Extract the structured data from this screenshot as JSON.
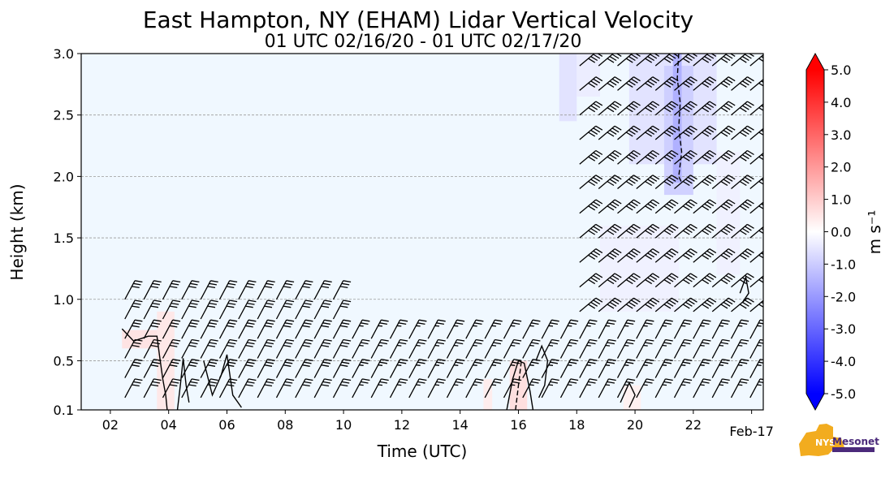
{
  "chart_data": {
    "type": "heatmap",
    "title": "East Hampton, NY (EHAM) Lidar Vertical Velocity",
    "subtitle": "01 UTC 02/16/20 - 01 UTC 02/17/20",
    "xlabel": "Time (UTC)",
    "ylabel": "Height (km)",
    "xlim": [
      1,
      24.4
    ],
    "ylim": [
      0.1,
      3.0
    ],
    "x_ticks": [
      {
        "value": 2,
        "label": "02"
      },
      {
        "value": 4,
        "label": "04"
      },
      {
        "value": 6,
        "label": "06"
      },
      {
        "value": 8,
        "label": "08"
      },
      {
        "value": 10,
        "label": "10"
      },
      {
        "value": 12,
        "label": "12"
      },
      {
        "value": 14,
        "label": "14"
      },
      {
        "value": 16,
        "label": "16"
      },
      {
        "value": 18,
        "label": "18"
      },
      {
        "value": 20,
        "label": "20"
      },
      {
        "value": 22,
        "label": "22"
      },
      {
        "value": 24,
        "label": "Feb-17"
      }
    ],
    "y_ticks": [
      {
        "value": 0.1,
        "label": "0.1"
      },
      {
        "value": 0.5,
        "label": "0.5"
      },
      {
        "value": 1.0,
        "label": "1.0"
      },
      {
        "value": 1.5,
        "label": "1.5"
      },
      {
        "value": 2.0,
        "label": "2.0"
      },
      {
        "value": 2.5,
        "label": "2.5"
      },
      {
        "value": 3.0,
        "label": "3.0"
      }
    ],
    "grid": "horizontal-dashed",
    "background_value": 0.0,
    "colorbar": {
      "label": "m s⁻¹",
      "min": -5.0,
      "max": 5.0,
      "extend": "both",
      "ticks": [
        "5.0",
        "4.0",
        "3.0",
        "2.0",
        "1.0",
        "0.0",
        "-1.0",
        "-2.0",
        "-3.0",
        "-4.0",
        "-5.0"
      ],
      "colors": {
        "negative": "#0000ff",
        "neutral": "#ffffff",
        "positive": "#ff0000"
      }
    },
    "regions": [
      {
        "t0": 17.4,
        "t1": 18.0,
        "z0": 2.45,
        "z1": 3.0,
        "value": -0.6
      },
      {
        "t0": 18.0,
        "t1": 18.8,
        "z0": 2.65,
        "z1": 3.0,
        "value": -0.4
      },
      {
        "t0": 19.8,
        "t1": 22.8,
        "z0": 2.1,
        "z1": 3.0,
        "value": -0.6
      },
      {
        "t0": 21.0,
        "t1": 22.0,
        "z0": 1.85,
        "z1": 2.9,
        "value": -1.0
      },
      {
        "t0": 21.3,
        "t1": 21.6,
        "z0": 1.95,
        "z1": 3.0,
        "value": -1.6
      },
      {
        "t0": 22.8,
        "t1": 23.6,
        "z0": 1.2,
        "z1": 2.2,
        "value": -0.3
      },
      {
        "t0": 18.8,
        "t1": 21.5,
        "z0": 0.9,
        "z1": 1.6,
        "value": -0.3
      },
      {
        "t0": 2.4,
        "t1": 3.6,
        "z0": 0.6,
        "z1": 0.75,
        "value": 0.6
      },
      {
        "t0": 3.6,
        "t1": 4.2,
        "z0": 0.1,
        "z1": 0.9,
        "value": 0.5
      },
      {
        "t0": 15.7,
        "t1": 16.3,
        "z0": 0.1,
        "z1": 0.5,
        "value": 0.7
      },
      {
        "t0": 14.8,
        "t1": 15.1,
        "z0": 0.1,
        "z1": 0.35,
        "value": 0.4
      },
      {
        "t0": 19.6,
        "t1": 20.2,
        "z0": 0.1,
        "z1": 0.3,
        "value": 0.3
      }
    ],
    "contours": [
      {
        "style": "solid",
        "points": [
          [
            2.4,
            0.76
          ],
          [
            2.8,
            0.66
          ],
          [
            3.3,
            0.7
          ],
          [
            3.6,
            0.7
          ],
          [
            3.7,
            0.52
          ],
          [
            3.8,
            0.35
          ],
          [
            3.9,
            0.22
          ],
          [
            3.95,
            0.1
          ]
        ]
      },
      {
        "style": "solid",
        "points": [
          [
            4.3,
            0.1
          ],
          [
            4.4,
            0.3
          ],
          [
            4.5,
            0.52
          ],
          [
            4.6,
            0.3
          ],
          [
            4.7,
            0.16
          ]
        ]
      },
      {
        "style": "solid",
        "points": [
          [
            5.2,
            0.5
          ],
          [
            5.5,
            0.22
          ],
          [
            5.8,
            0.38
          ],
          [
            6.0,
            0.55
          ],
          [
            6.2,
            0.22
          ],
          [
            6.5,
            0.12
          ]
        ]
      },
      {
        "style": "solid",
        "points": [
          [
            15.6,
            0.1
          ],
          [
            15.8,
            0.35
          ],
          [
            16.0,
            0.5
          ],
          [
            16.2,
            0.48
          ],
          [
            16.4,
            0.25
          ],
          [
            16.5,
            0.1
          ]
        ]
      },
      {
        "style": "solid",
        "points": [
          [
            16.6,
            0.5
          ],
          [
            16.8,
            0.62
          ],
          [
            17.0,
            0.5
          ],
          [
            16.9,
            0.3
          ],
          [
            16.7,
            0.2
          ]
        ]
      },
      {
        "style": "solid",
        "points": [
          [
            19.5,
            0.16
          ],
          [
            19.8,
            0.32
          ],
          [
            20.0,
            0.22
          ],
          [
            19.8,
            0.12
          ]
        ]
      },
      {
        "style": "solid",
        "points": [
          [
            23.6,
            1.05
          ],
          [
            23.8,
            1.18
          ],
          [
            23.9,
            1.05
          ],
          [
            23.7,
            0.98
          ]
        ]
      },
      {
        "style": "dashed",
        "points": [
          [
            21.5,
            3.0
          ],
          [
            21.45,
            2.8
          ],
          [
            21.55,
            2.6
          ],
          [
            21.5,
            2.4
          ],
          [
            21.6,
            2.2
          ],
          [
            21.5,
            2.0
          ],
          [
            21.6,
            1.95
          ]
        ]
      },
      {
        "style": "dashed",
        "points": [
          [
            15.9,
            0.1
          ],
          [
            16.0,
            0.3
          ],
          [
            16.1,
            0.5
          ]
        ]
      }
    ],
    "wind_barbs": {
      "start_time": 2.5,
      "end_time": 24.0,
      "step_hours": 0.65,
      "low_layer": {
        "top_km": 1.05,
        "until_time": 10.0,
        "speed_kt": 30
      },
      "boundary_layer": {
        "top_km": 0.8,
        "speed_kt": 25
      },
      "upper_layer": {
        "start_time": 17.5,
        "bottom_km": 0.9,
        "top_km": 3.0,
        "speed_kt": 40
      },
      "level_step_km": 0.1
    }
  }
}
